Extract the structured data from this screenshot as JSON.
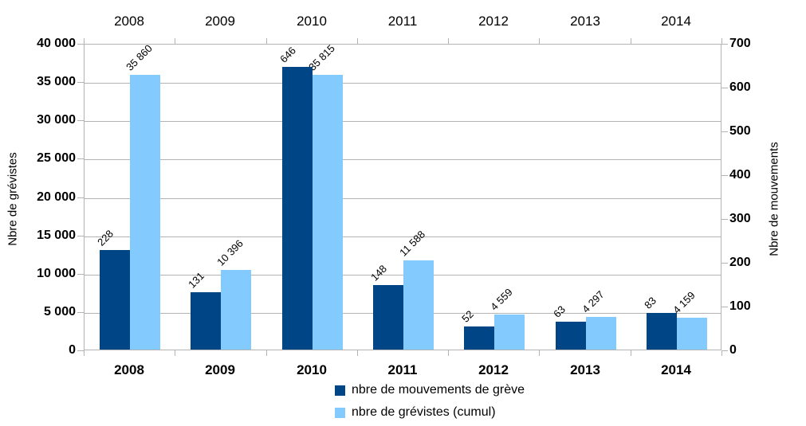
{
  "chart_data": {
    "type": "bar",
    "title": "",
    "categories": [
      "2008",
      "2009",
      "2010",
      "2011",
      "2012",
      "2013",
      "2014"
    ],
    "series": [
      {
        "name": "nbre de mouvements de grève",
        "axis": "right",
        "color": "#004586",
        "values": [
          228,
          131,
          646,
          148,
          52,
          63,
          83
        ],
        "labels": [
          "228",
          "131",
          "646",
          "148",
          "52",
          "63",
          "83"
        ]
      },
      {
        "name": "nbre de grévistes (cumul)",
        "axis": "left",
        "color": "#83CAFF",
        "values": [
          35860,
          10396,
          35815,
          11588,
          4559,
          4297,
          4159
        ],
        "labels": [
          "35 860",
          "10 396",
          "35 815",
          "11 588",
          "4 559",
          "4 297",
          "4 159"
        ]
      }
    ],
    "left_axis": {
      "title": "Nbre de grévistes",
      "min": 0,
      "max": 40000,
      "tick_step": 5000,
      "ticks": [
        "0",
        "5 000",
        "10 000",
        "15 000",
        "20 000",
        "25 000",
        "30 000",
        "35 000",
        "40 000"
      ]
    },
    "right_axis": {
      "title": "Nbre de mouvements",
      "min": 0,
      "max": 700,
      "tick_step": 100,
      "ticks": [
        "0",
        "100",
        "200",
        "300",
        "400",
        "500",
        "600",
        "700"
      ]
    },
    "x_axis_top_labels": [
      "2008",
      "2009",
      "2010",
      "2011",
      "2012",
      "2013",
      "2014"
    ],
    "legend_position": "bottom",
    "grid": true
  },
  "colors": {
    "series_dark": "#004586",
    "series_light": "#83CAFF",
    "grid": "#b3b3b3",
    "axis": "#b3b3b3",
    "text": "#000000"
  }
}
